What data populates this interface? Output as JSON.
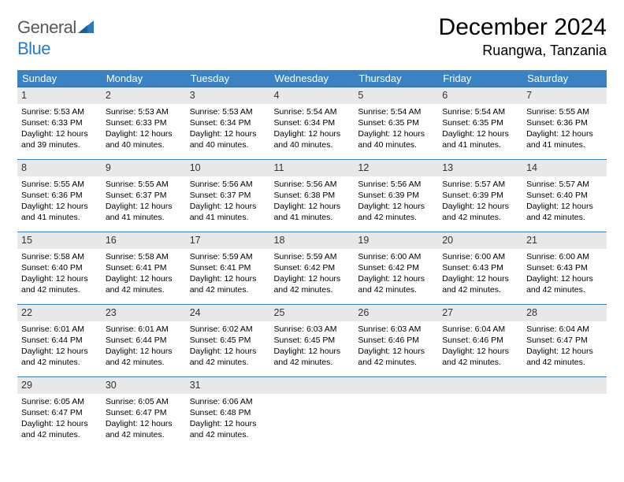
{
  "logo": {
    "word1": "General",
    "word2": "Blue"
  },
  "title": "December 2024",
  "location": "Ruangwa, Tanzania",
  "style": {
    "header_bg": "#3a82c4",
    "header_fg": "#ffffff",
    "daynum_bg": "#e8e8e8",
    "cell_border": "#3a82c4",
    "logo_gray": "#585858",
    "logo_blue": "#2b7ac0",
    "page_bg": "#ffffff",
    "month_fontsize": 30,
    "location_fontsize": 18,
    "dayhead_fontsize": 13,
    "cell_fontsize": 10.5
  },
  "weekdays": [
    "Sunday",
    "Monday",
    "Tuesday",
    "Wednesday",
    "Thursday",
    "Friday",
    "Saturday"
  ],
  "labels": {
    "sunrise": "Sunrise:",
    "sunset": "Sunset:",
    "daylight": "Daylight:"
  },
  "weeks": [
    [
      {
        "n": "1",
        "rise": "5:53 AM",
        "set": "6:33 PM",
        "day": "12 hours and 39 minutes."
      },
      {
        "n": "2",
        "rise": "5:53 AM",
        "set": "6:33 PM",
        "day": "12 hours and 40 minutes."
      },
      {
        "n": "3",
        "rise": "5:53 AM",
        "set": "6:34 PM",
        "day": "12 hours and 40 minutes."
      },
      {
        "n": "4",
        "rise": "5:54 AM",
        "set": "6:34 PM",
        "day": "12 hours and 40 minutes."
      },
      {
        "n": "5",
        "rise": "5:54 AM",
        "set": "6:35 PM",
        "day": "12 hours and 40 minutes."
      },
      {
        "n": "6",
        "rise": "5:54 AM",
        "set": "6:35 PM",
        "day": "12 hours and 41 minutes."
      },
      {
        "n": "7",
        "rise": "5:55 AM",
        "set": "6:36 PM",
        "day": "12 hours and 41 minutes."
      }
    ],
    [
      {
        "n": "8",
        "rise": "5:55 AM",
        "set": "6:36 PM",
        "day": "12 hours and 41 minutes."
      },
      {
        "n": "9",
        "rise": "5:55 AM",
        "set": "6:37 PM",
        "day": "12 hours and 41 minutes."
      },
      {
        "n": "10",
        "rise": "5:56 AM",
        "set": "6:37 PM",
        "day": "12 hours and 41 minutes."
      },
      {
        "n": "11",
        "rise": "5:56 AM",
        "set": "6:38 PM",
        "day": "12 hours and 41 minutes."
      },
      {
        "n": "12",
        "rise": "5:56 AM",
        "set": "6:39 PM",
        "day": "12 hours and 42 minutes."
      },
      {
        "n": "13",
        "rise": "5:57 AM",
        "set": "6:39 PM",
        "day": "12 hours and 42 minutes."
      },
      {
        "n": "14",
        "rise": "5:57 AM",
        "set": "6:40 PM",
        "day": "12 hours and 42 minutes."
      }
    ],
    [
      {
        "n": "15",
        "rise": "5:58 AM",
        "set": "6:40 PM",
        "day": "12 hours and 42 minutes."
      },
      {
        "n": "16",
        "rise": "5:58 AM",
        "set": "6:41 PM",
        "day": "12 hours and 42 minutes."
      },
      {
        "n": "17",
        "rise": "5:59 AM",
        "set": "6:41 PM",
        "day": "12 hours and 42 minutes."
      },
      {
        "n": "18",
        "rise": "5:59 AM",
        "set": "6:42 PM",
        "day": "12 hours and 42 minutes."
      },
      {
        "n": "19",
        "rise": "6:00 AM",
        "set": "6:42 PM",
        "day": "12 hours and 42 minutes."
      },
      {
        "n": "20",
        "rise": "6:00 AM",
        "set": "6:43 PM",
        "day": "12 hours and 42 minutes."
      },
      {
        "n": "21",
        "rise": "6:00 AM",
        "set": "6:43 PM",
        "day": "12 hours and 42 minutes."
      }
    ],
    [
      {
        "n": "22",
        "rise": "6:01 AM",
        "set": "6:44 PM",
        "day": "12 hours and 42 minutes."
      },
      {
        "n": "23",
        "rise": "6:01 AM",
        "set": "6:44 PM",
        "day": "12 hours and 42 minutes."
      },
      {
        "n": "24",
        "rise": "6:02 AM",
        "set": "6:45 PM",
        "day": "12 hours and 42 minutes."
      },
      {
        "n": "25",
        "rise": "6:03 AM",
        "set": "6:45 PM",
        "day": "12 hours and 42 minutes."
      },
      {
        "n": "26",
        "rise": "6:03 AM",
        "set": "6:46 PM",
        "day": "12 hours and 42 minutes."
      },
      {
        "n": "27",
        "rise": "6:04 AM",
        "set": "6:46 PM",
        "day": "12 hours and 42 minutes."
      },
      {
        "n": "28",
        "rise": "6:04 AM",
        "set": "6:47 PM",
        "day": "12 hours and 42 minutes."
      }
    ],
    [
      {
        "n": "29",
        "rise": "6:05 AM",
        "set": "6:47 PM",
        "day": "12 hours and 42 minutes."
      },
      {
        "n": "30",
        "rise": "6:05 AM",
        "set": "6:47 PM",
        "day": "12 hours and 42 minutes."
      },
      {
        "n": "31",
        "rise": "6:06 AM",
        "set": "6:48 PM",
        "day": "12 hours and 42 minutes."
      },
      null,
      null,
      null,
      null
    ]
  ]
}
